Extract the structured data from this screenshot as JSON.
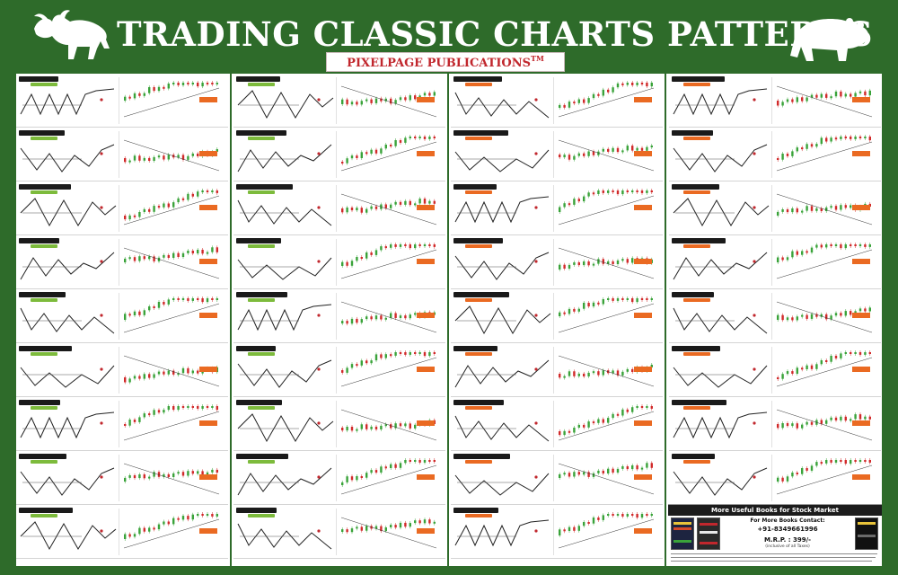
{
  "poster": {
    "title": "TRADING CLASSIC CHARTS PATTERNS",
    "publisher": "PIXELPAGE PUBLICATIONS",
    "publisher_mark": "TM",
    "icons": {
      "left": "bull-icon",
      "right": "bear-icon"
    }
  },
  "colors": {
    "frame": "#2e6b2a",
    "title_text": "#ffffff",
    "publisher_text": "#c1272d",
    "bullish_badge": "#7dbb3c",
    "bearish_badge": "#ea6a22",
    "up_candle": "#3aa33a",
    "down_candle": "#d12a2a",
    "sketch_line": "#222222"
  },
  "columns": [
    {
      "badge": "bullish",
      "rows": 9
    },
    {
      "badge": "bullish",
      "rows": 9
    },
    {
      "badge": "bearish",
      "rows": 9
    },
    {
      "badge": "bearish",
      "rows": 8
    }
  ],
  "promo": {
    "heading": "More Useful Books for Stock Market",
    "contact_label": "For More Books Contact:",
    "phone": "+91-8349661996",
    "price": "M.R.P. : 399/-",
    "tax_note": "(inclusive of all Taxes)"
  }
}
